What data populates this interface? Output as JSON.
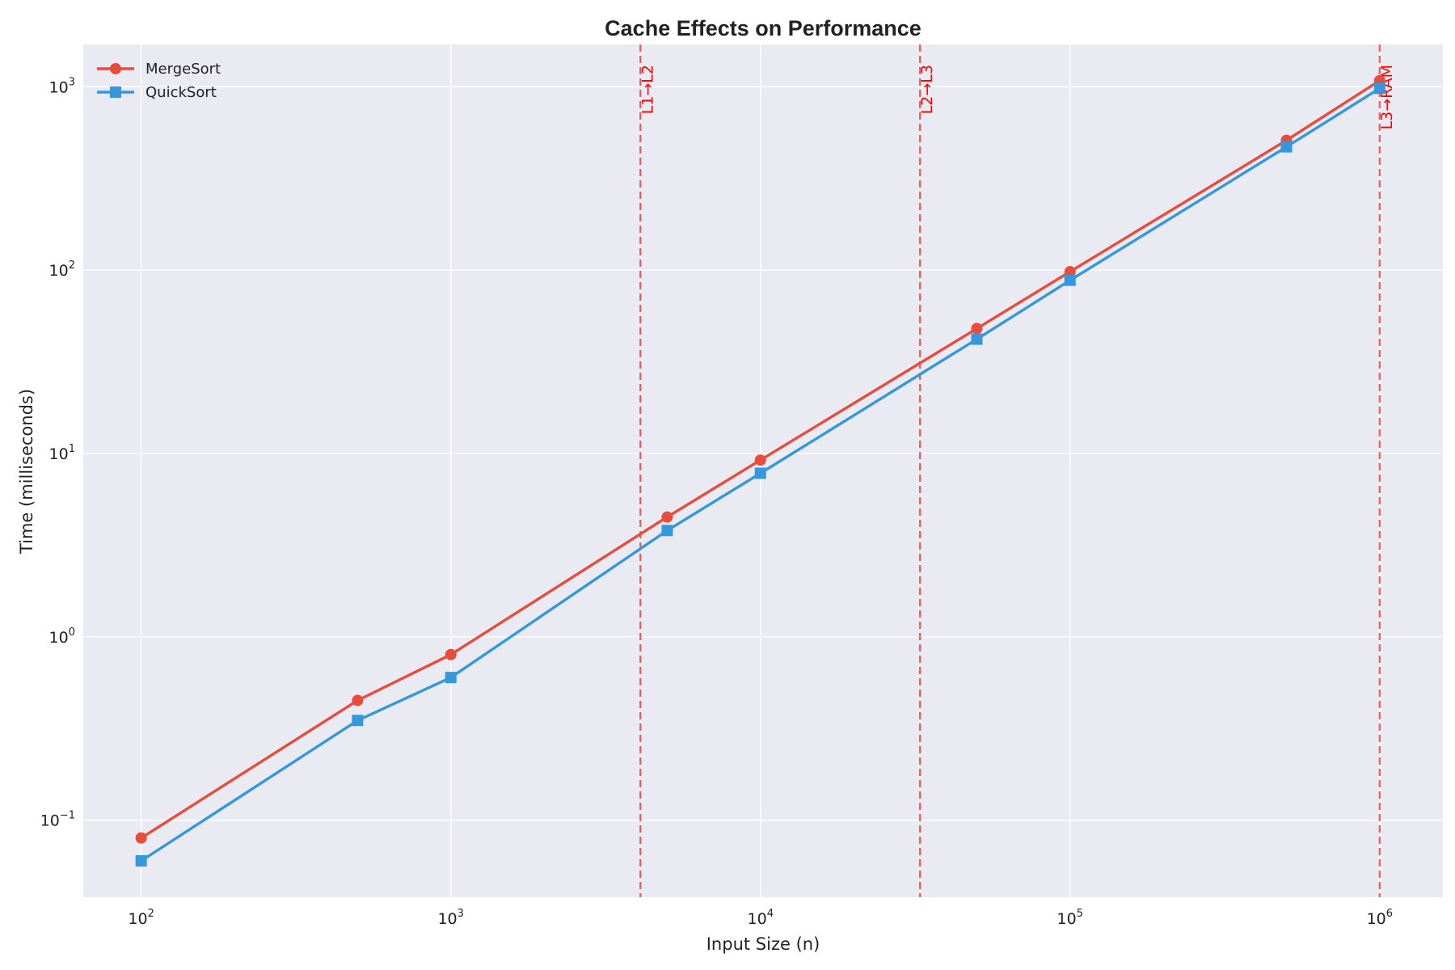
{
  "chart_data": {
    "type": "line",
    "title": "Cache Effects on Performance",
    "xlabel": "Input Size (n)",
    "ylabel": "Time (milliseconds)",
    "xscale": "log",
    "yscale": "log",
    "xlim": [
      65,
      1600000
    ],
    "ylim": [
      0.038,
      1700
    ],
    "grid": true,
    "legend_position": "top-left",
    "x_ticks": [
      {
        "value": 100,
        "base": "10",
        "exp": "2"
      },
      {
        "value": 1000,
        "base": "10",
        "exp": "3"
      },
      {
        "value": 10000,
        "base": "10",
        "exp": "4"
      },
      {
        "value": 100000,
        "base": "10",
        "exp": "5"
      },
      {
        "value": 1000000,
        "base": "10",
        "exp": "6"
      }
    ],
    "y_ticks": [
      {
        "value": 0.1,
        "base": "10",
        "exp": "−1"
      },
      {
        "value": 1,
        "base": "10",
        "exp": "0"
      },
      {
        "value": 10,
        "base": "10",
        "exp": "1"
      },
      {
        "value": 100,
        "base": "10",
        "exp": "2"
      },
      {
        "value": 1000,
        "base": "10",
        "exp": "3"
      }
    ],
    "x": [
      100,
      500,
      1000,
      5000,
      10000,
      50000,
      100000,
      500000,
      1000000
    ],
    "series": [
      {
        "name": "MergeSort",
        "color": "#e74c3c",
        "marker": "circle",
        "values": [
          0.08,
          0.45,
          0.8,
          4.5,
          9.2,
          48,
          98,
          510,
          1080
        ]
      },
      {
        "name": "QuickSort",
        "color": "#3498db",
        "marker": "square",
        "values": [
          0.06,
          0.35,
          0.6,
          3.8,
          7.8,
          42,
          88,
          470,
          980
        ]
      }
    ],
    "annotations": [
      {
        "x": 4096,
        "label": "L1→L2",
        "color": "#ff0000"
      },
      {
        "x": 32768,
        "label": "L2→L3",
        "color": "#ff0000"
      },
      {
        "x": 1000000,
        "label": "L3→RAM",
        "color": "#ff0000"
      }
    ]
  }
}
